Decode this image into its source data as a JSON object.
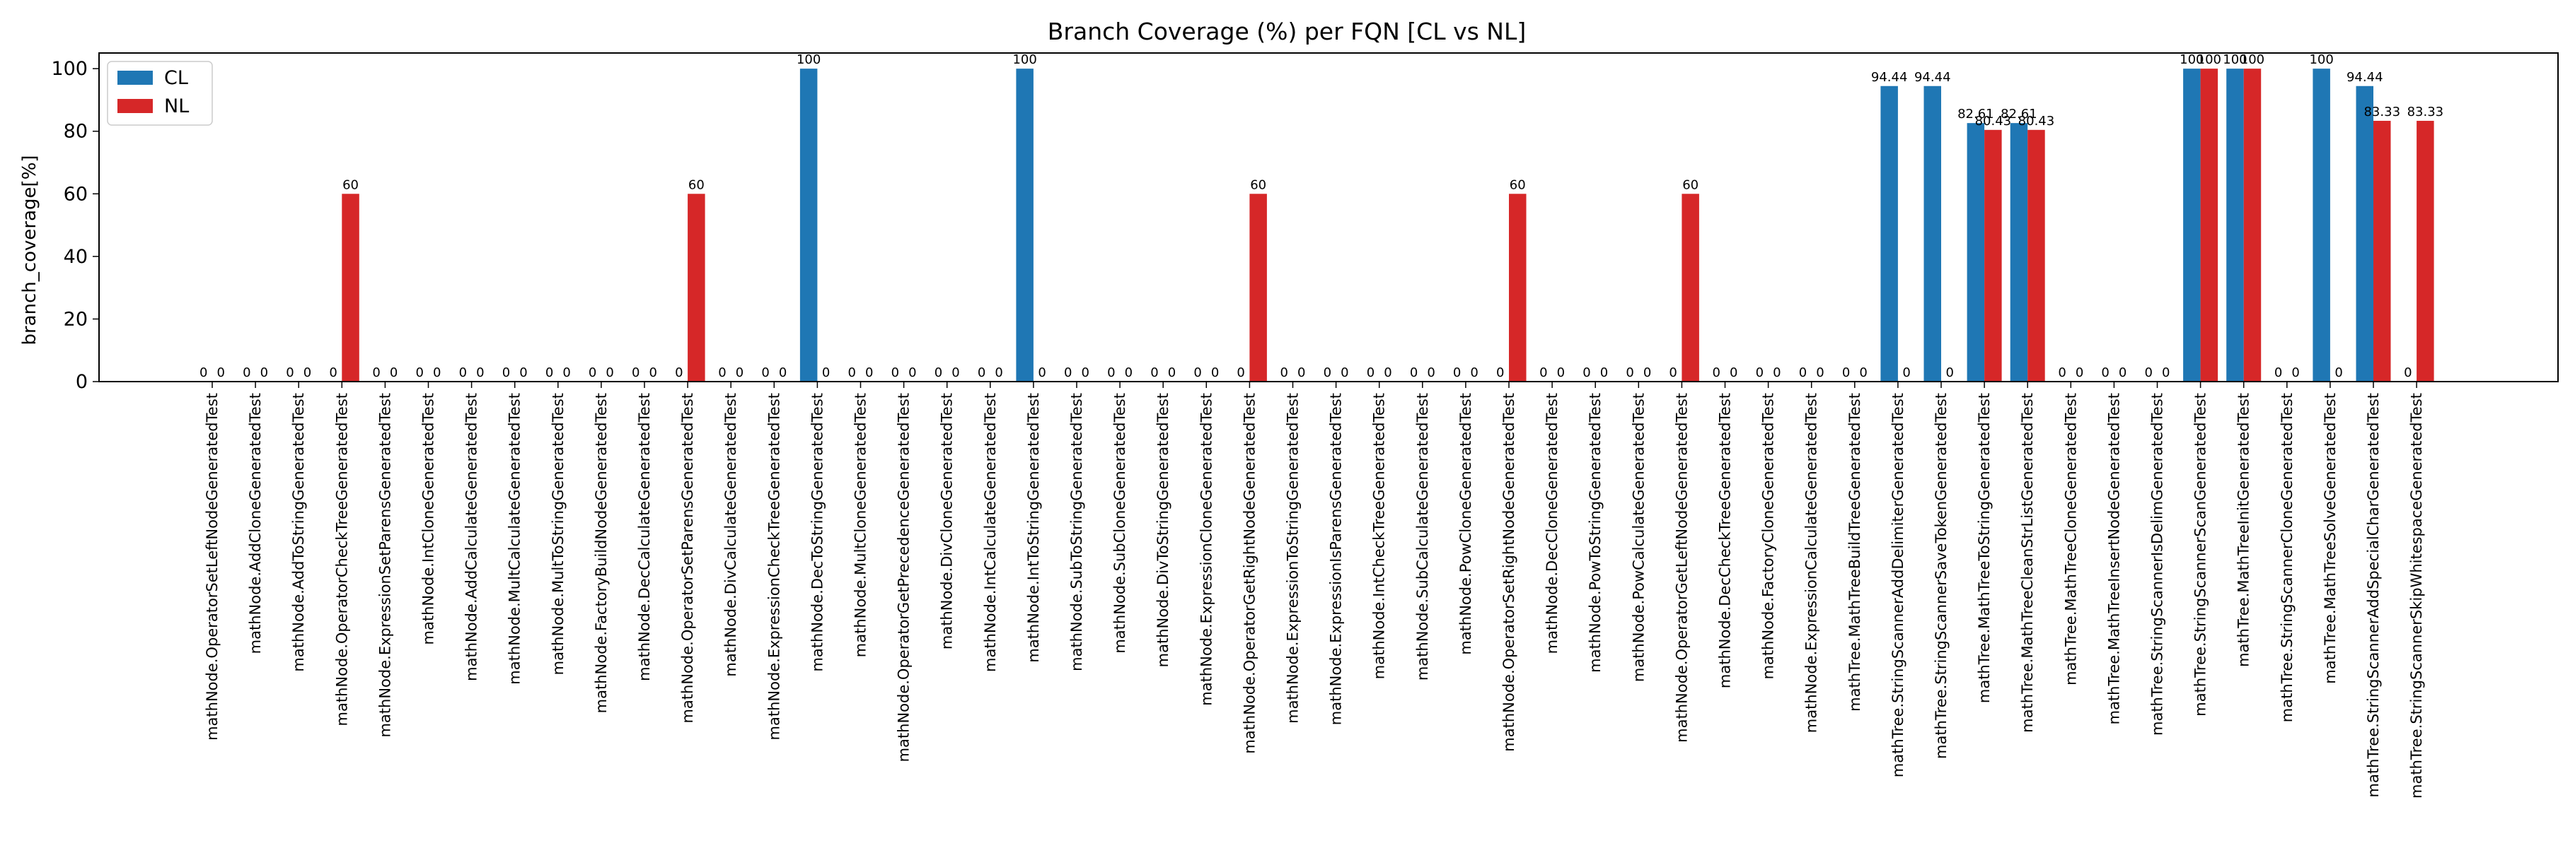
{
  "chart_data": {
    "type": "bar",
    "title": "Branch Coverage (%) per FQN [CL vs NL]",
    "xlabel": "",
    "ylabel": "branch_coverage[%]",
    "ylim": [
      0,
      105
    ],
    "yticks": [
      0,
      20,
      40,
      60,
      80,
      100
    ],
    "grid": false,
    "legend_position": "top-left",
    "categories": [
      "mathNode.OperatorSetLeftNodeGeneratedTest",
      "mathNode.AddCloneGeneratedTest",
      "mathNode.AddToStringGeneratedTest",
      "mathNode.OperatorCheckTreeGeneratedTest",
      "mathNode.ExpressionSetParensGeneratedTest",
      "mathNode.IntCloneGeneratedTest",
      "mathNode.AddCalculateGeneratedTest",
      "mathNode.MultCalculateGeneratedTest",
      "mathNode.MultToStringGeneratedTest",
      "mathNode.FactoryBuildNodeGeneratedTest",
      "mathNode.DecCalculateGeneratedTest",
      "mathNode.OperatorSetParensGeneratedTest",
      "mathNode.DivCalculateGeneratedTest",
      "mathNode.ExpressionCheckTreeGeneratedTest",
      "mathNode.DecToStringGeneratedTest",
      "mathNode.MultCloneGeneratedTest",
      "mathNode.OperatorGetPrecedenceGeneratedTest",
      "mathNode.DivCloneGeneratedTest",
      "mathNode.IntCalculateGeneratedTest",
      "mathNode.IntToStringGeneratedTest",
      "mathNode.SubToStringGeneratedTest",
      "mathNode.SubCloneGeneratedTest",
      "mathNode.DivToStringGeneratedTest",
      "mathNode.ExpressionCloneGeneratedTest",
      "mathNode.OperatorGetRightNodeGeneratedTest",
      "mathNode.ExpressionToStringGeneratedTest",
      "mathNode.ExpressionIsParensGeneratedTest",
      "mathNode.IntCheckTreeGeneratedTest",
      "mathNode.SubCalculateGeneratedTest",
      "mathNode.PowCloneGeneratedTest",
      "mathNode.OperatorSetRightNodeGeneratedTest",
      "mathNode.DecCloneGeneratedTest",
      "mathNode.PowToStringGeneratedTest",
      "mathNode.PowCalculateGeneratedTest",
      "mathNode.OperatorGetLeftNodeGeneratedTest",
      "mathNode.DecCheckTreeGeneratedTest",
      "mathNode.FactoryCloneGeneratedTest",
      "mathNode.ExpressionCalculateGeneratedTest",
      "mathTree.MathTreeBuildTreeGeneratedTest",
      "mathTree.StringScannerAddDelimiterGeneratedTest",
      "mathTree.StringScannerSaveTokenGeneratedTest",
      "mathTree.MathTreeToStringGeneratedTest",
      "mathTree.MathTreeCleanStrListGeneratedTest",
      "mathTree.MathTreeCloneGeneratedTest",
      "mathTree.MathTreeInsertNodeGeneratedTest",
      "mathTree.StringScannerIsDelimGeneratedTest",
      "mathTree.StringScannerScanGeneratedTest",
      "mathTree.MathTreeInitGeneratedTest",
      "mathTree.StringScannerCloneGeneratedTest",
      "mathTree.MathTreeSolveGeneratedTest",
      "mathTree.StringScannerAddSpecialCharGeneratedTest",
      "mathTree.StringScannerSkipWhitespaceGeneratedTest"
    ],
    "series": [
      {
        "name": "CL",
        "color": "#1f77b4",
        "values": [
          0,
          0,
          0,
          0,
          0,
          0,
          0,
          0,
          0,
          0,
          0,
          0,
          0,
          0,
          100,
          0,
          0,
          0,
          0,
          100,
          0,
          0,
          0,
          0,
          0,
          0,
          0,
          0,
          0,
          0,
          0,
          0,
          0,
          0,
          0,
          0,
          0,
          0,
          0,
          94.44,
          94.44,
          82.61,
          82.61,
          0,
          0,
          0,
          100,
          100,
          0,
          100,
          94.44,
          0
        ]
      },
      {
        "name": "NL",
        "color": "#d62728",
        "values": [
          0,
          0,
          0,
          60,
          0,
          0,
          0,
          0,
          0,
          0,
          0,
          60,
          0,
          0,
          0,
          0,
          0,
          0,
          0,
          0,
          0,
          0,
          0,
          0,
          60,
          0,
          0,
          0,
          0,
          0,
          60,
          0,
          0,
          0,
          60,
          0,
          0,
          0,
          0,
          0,
          0,
          80.43,
          80.43,
          0,
          0,
          0,
          100,
          100,
          0,
          0,
          83.33,
          83.33
        ]
      }
    ]
  }
}
